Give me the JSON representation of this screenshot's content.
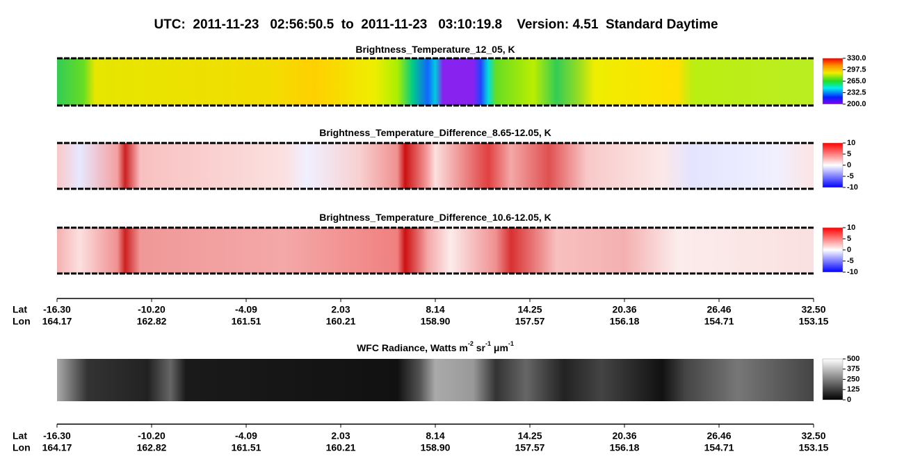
{
  "title": "UTC:  2011-11-23   02:56:50.5  to  2011-11-23   03:10:19.8    Version: 4.51  Standard Daytime",
  "chart_data": [
    {
      "type": "heatmap",
      "title": [
        "Brightness_Temperature_12_05, K"
      ],
      "colormap": "rainbow",
      "clim": [
        200,
        330
      ],
      "cticks": [
        {
          "value": 200,
          "label": "200.0"
        },
        {
          "value": 232.5,
          "label": "232.5"
        },
        {
          "value": 265,
          "label": "265.0"
        },
        {
          "value": 297.5,
          "label": "297.5"
        },
        {
          "value": 330,
          "label": "330.0"
        }
      ]
    },
    {
      "type": "heatmap",
      "title": [
        "Brightness_Temperature_Difference_8.65-12.05, K"
      ],
      "colormap": "bwr1",
      "clim": [
        -10,
        10
      ],
      "cticks": [
        -10,
        -5,
        0,
        5,
        10
      ]
    },
    {
      "type": "heatmap",
      "title": [
        "Brightness_Temperature_Difference_10.6-12.05, K"
      ],
      "colormap": "bwr2",
      "clim": [
        -10,
        10
      ],
      "cticks": [
        -10,
        -5,
        0,
        5,
        10
      ]
    },
    {
      "type": "heatmap",
      "title": [
        "WFC Radiance, Watts m",
        "-2",
        " sr",
        "-1",
        " μm",
        "-1"
      ],
      "colormap": "gray",
      "clim": [
        0,
        500
      ],
      "cticks": [
        0,
        125,
        250,
        375,
        500
      ]
    }
  ],
  "track_axis": {
    "lat_label": "Lat",
    "lon_label": "Lon",
    "lat": [
      "-16.30",
      "-10.20",
      "-4.09",
      "2.03",
      "8.14",
      "14.25",
      "20.36",
      "26.46",
      "32.50"
    ],
    "lon": [
      "164.17",
      "162.82",
      "161.51",
      "160.21",
      "158.90",
      "157.57",
      "156.18",
      "154.71",
      "153.15"
    ]
  }
}
